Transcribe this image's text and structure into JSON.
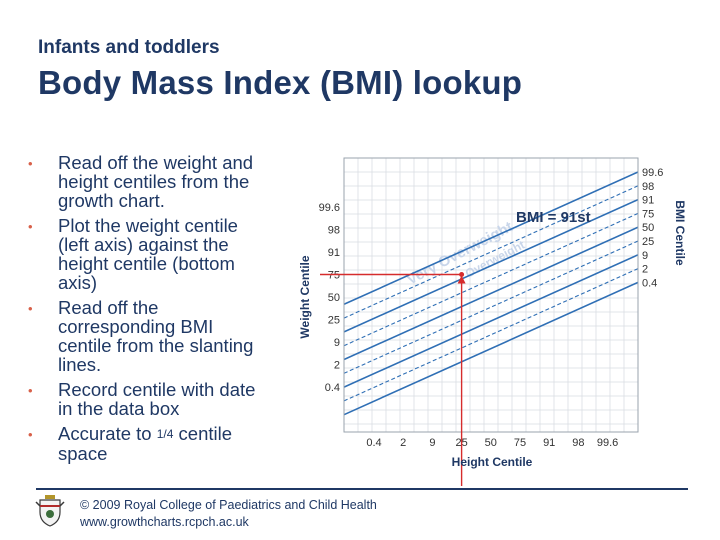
{
  "header": {
    "subtitle": "Infants and toddlers",
    "title": "Body Mass Index (BMI) lookup"
  },
  "bullets": [
    {
      "lines": [
        "Read off the weight and",
        "height centiles from the",
        "growth chart."
      ]
    },
    {
      "lines": [
        "Plot the weight centile",
        "(left axis) against the",
        "height centile (bottom",
        "axis)"
      ]
    },
    {
      "lines": [
        "Read off the",
        "corresponding BMI",
        "centile from the slanting",
        "lines."
      ]
    },
    {
      "lines": [
        "Record centile with date",
        "in the data box"
      ]
    },
    {
      "lines": [
        "Accurate to ",
        "centile",
        "space"
      ],
      "fraction": "1/4"
    }
  ],
  "chart_data": {
    "type": "diagram",
    "left_axis_title": "Weight Centile",
    "bottom_axis_title": "Height Centile",
    "right_axis_title": "BMI Centile",
    "left_ticks": [
      "99.6",
      "98",
      "91",
      "75",
      "50",
      "25",
      "9",
      "2",
      "0.4"
    ],
    "bottom_ticks": [
      "0.4",
      "2",
      "9",
      "25",
      "50",
      "75",
      "91",
      "98",
      "99.6"
    ],
    "right_ticks": [
      "99.6",
      "98",
      "91",
      "75",
      "50",
      "25",
      "9",
      "2",
      "0.4"
    ],
    "watermark_lines": [
      "Very Overweight",
      "Overweight"
    ],
    "example": {
      "weight_centile": "75",
      "height_centile": "25",
      "result_label": "BMI = 91st"
    },
    "colors": {
      "centile_line": "#2f6fb5",
      "grid": "#d9dde3",
      "guide": "#d62c2c",
      "watermark": "#c9d6ea"
    }
  },
  "footer": {
    "copyright": "© 2009 Royal College of Paediatrics and Child Health",
    "website": "www.growthcharts.rcpch.ac.uk",
    "crest_icon": "rcpch-crest-icon"
  }
}
